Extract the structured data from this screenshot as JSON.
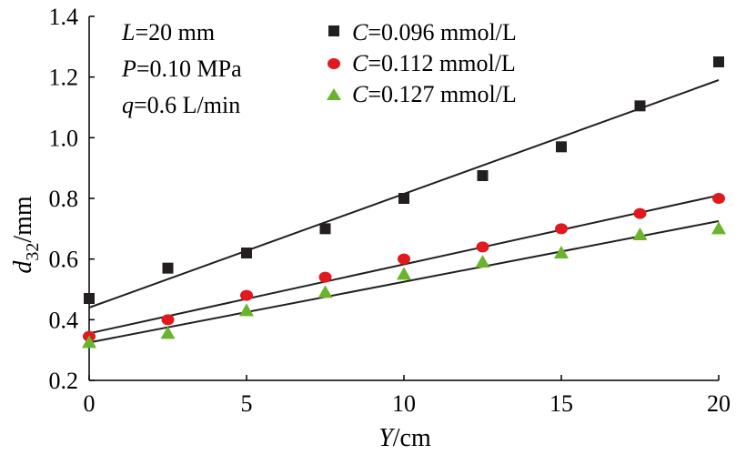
{
  "chart_data": {
    "type": "scatter",
    "xlabel": {
      "var": "Y",
      "unit": "/cm"
    },
    "ylabel": {
      "var": "d",
      "sub": "32",
      "unit": "/mm"
    },
    "xlim": [
      0,
      20
    ],
    "ylim": [
      0.2,
      1.4
    ],
    "xticks": [
      "0",
      "5",
      "10",
      "15",
      "20"
    ],
    "yticks": [
      "0.2",
      "0.4",
      "0.6",
      "0.8",
      "1.0",
      "1.2",
      "1.4"
    ],
    "grid": false,
    "legend_position": "top-right",
    "annotations": [
      {
        "var": "L",
        "value": "=20 mm"
      },
      {
        "var": "P",
        "value": "=0.10 MPa"
      },
      {
        "var": "q",
        "value": "=0.6 L/min"
      }
    ],
    "x": [
      0,
      2.5,
      5,
      7.5,
      10,
      12.5,
      15,
      17.5,
      20
    ],
    "series": [
      {
        "name": "C=0.096 mmol/L",
        "var": "C",
        "label_rest": "=0.096 mmol/L",
        "marker": "square",
        "color": "#231f20",
        "values": [
          0.47,
          0.57,
          0.62,
          0.7,
          0.8,
          0.875,
          0.97,
          1.105,
          1.25
        ],
        "fit": [
          0.44,
          1.19
        ]
      },
      {
        "name": "C=0.112 mmol/L",
        "var": "C",
        "label_rest": "=0.112 mmol/L",
        "marker": "circle",
        "color": "#e0191e",
        "values": [
          0.345,
          0.4,
          0.48,
          0.54,
          0.6,
          0.64,
          0.7,
          0.75,
          0.8
        ],
        "fit": [
          0.355,
          0.81
        ]
      },
      {
        "name": "C=0.127 mmol/L",
        "var": "C",
        "label_rest": "=0.127 mmol/L",
        "marker": "triangle",
        "color": "#6ab42d",
        "values": [
          0.325,
          0.355,
          0.43,
          0.49,
          0.55,
          0.59,
          0.62,
          0.68,
          0.7
        ],
        "fit": [
          0.325,
          0.725
        ]
      }
    ],
    "fit_line_color": "#231f20"
  }
}
